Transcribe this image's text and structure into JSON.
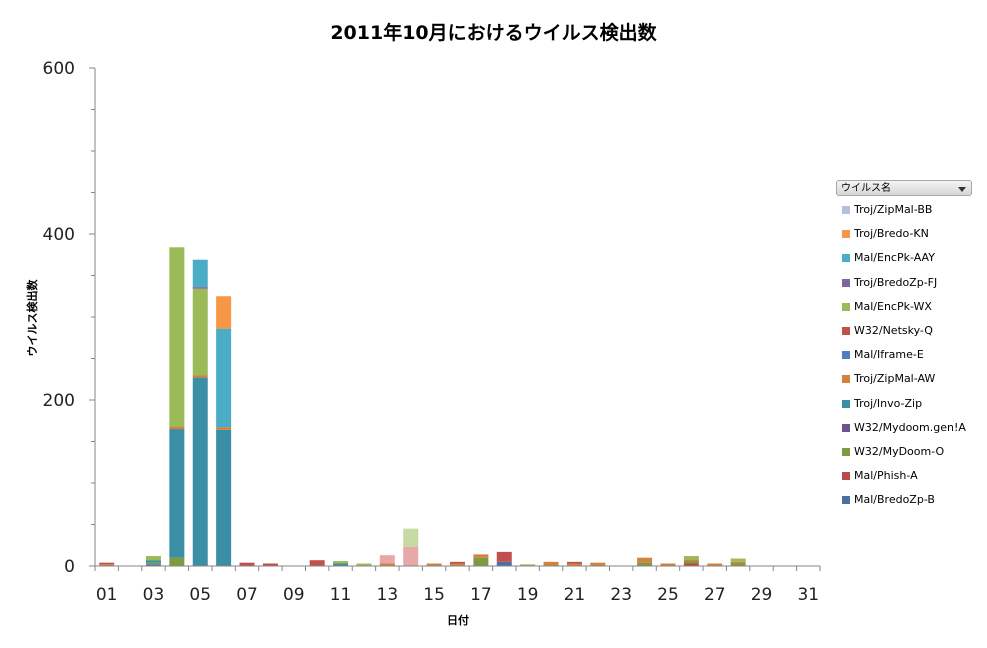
{
  "chart_data": {
    "type": "bar",
    "stacked": true,
    "title": "2011年10月におけるウイルス検出数",
    "xlabel": "日付",
    "ylabel": "ウイルス検出数",
    "ylim": [
      0,
      600
    ],
    "yticks": [
      0,
      200,
      400,
      600
    ],
    "xtick_labels": [
      "01",
      "03",
      "05",
      "07",
      "09",
      "11",
      "13",
      "15",
      "17",
      "19",
      "21",
      "23",
      "25",
      "27",
      "29",
      "31"
    ],
    "categories": [
      "01",
      "02",
      "03",
      "04",
      "05",
      "06",
      "07",
      "08",
      "09",
      "10",
      "11",
      "12",
      "13",
      "14",
      "15",
      "16",
      "17",
      "18",
      "19",
      "20",
      "21",
      "22",
      "23",
      "24",
      "25",
      "26",
      "27",
      "28",
      "29",
      "30",
      "31"
    ],
    "legend_title": "ウイルス名",
    "legend_position": "right",
    "series": [
      {
        "name": "Mal/BredoZp-B",
        "color": "#4a6fa5",
        "values": [
          0,
          0,
          2,
          0,
          0,
          0,
          0,
          0,
          0,
          0,
          0,
          0,
          0,
          0,
          0,
          0,
          0,
          5,
          0,
          0,
          0,
          0,
          0,
          0,
          0,
          0,
          0,
          0,
          0,
          0,
          0
        ]
      },
      {
        "name": "Mal/Phish-A",
        "color": "#b84a4a",
        "values": [
          0,
          0,
          0,
          0,
          0,
          0,
          0,
          0,
          0,
          0,
          0,
          0,
          0,
          0,
          0,
          0,
          0,
          0,
          0,
          0,
          0,
          0,
          0,
          0,
          0,
          3,
          0,
          0,
          0,
          0,
          0
        ]
      },
      {
        "name": "W32/MyDoom-O",
        "color": "#7f9a42",
        "values": [
          0,
          0,
          2,
          10,
          0,
          0,
          0,
          0,
          0,
          0,
          0,
          0,
          0,
          0,
          0,
          0,
          10,
          0,
          0,
          0,
          0,
          0,
          0,
          4,
          0,
          3,
          0,
          3,
          0,
          0,
          0
        ]
      },
      {
        "name": "W32/Mydoom.gen!A",
        "color": "#6a5590",
        "values": [
          0,
          0,
          0,
          0,
          0,
          0,
          0,
          0,
          0,
          0,
          0,
          0,
          0,
          0,
          0,
          0,
          0,
          0,
          0,
          0,
          0,
          0,
          0,
          0,
          0,
          0,
          0,
          0,
          0,
          0,
          0
        ]
      },
      {
        "name": "Troj/Invo-Zip",
        "color": "#3a8fa5",
        "values": [
          0,
          0,
          3,
          155,
          227,
          164,
          0,
          0,
          0,
          0,
          3,
          0,
          0,
          0,
          0,
          0,
          0,
          0,
          0,
          0,
          0,
          0,
          0,
          0,
          0,
          0,
          0,
          0,
          0,
          0,
          0
        ]
      },
      {
        "name": "Troj/ZipMal-AW",
        "color": "#d1823c",
        "values": [
          2,
          0,
          0,
          3,
          3,
          3,
          0,
          0,
          0,
          0,
          0,
          0,
          3,
          0,
          3,
          3,
          4,
          0,
          0,
          5,
          3,
          4,
          0,
          6,
          3,
          2,
          3,
          2,
          0,
          0,
          0
        ]
      },
      {
        "name": "Mal/Iframe-E",
        "color": "#4a7ec0",
        "values": [
          0,
          0,
          0,
          0,
          0,
          0,
          0,
          0,
          0,
          0,
          0,
          0,
          0,
          0,
          0,
          0,
          0,
          0,
          0,
          0,
          0,
          0,
          0,
          0,
          0,
          0,
          0,
          0,
          0,
          0,
          0
        ]
      },
      {
        "name": "W32/Netsky-Q",
        "color": "#c0504d",
        "values": [
          2,
          0,
          0,
          0,
          0,
          0,
          4,
          3,
          0,
          7,
          0,
          0,
          0,
          0,
          0,
          2,
          0,
          12,
          0,
          0,
          2,
          0,
          0,
          0,
          0,
          0,
          0,
          0,
          0,
          0,
          0
        ]
      },
      {
        "name": "Mal/EncPk-WX",
        "color": "#9bbb59",
        "values": [
          0,
          0,
          5,
          216,
          104,
          0,
          0,
          0,
          0,
          0,
          3,
          3,
          0,
          0,
          0,
          0,
          0,
          0,
          2,
          0,
          0,
          0,
          0,
          0,
          0,
          4,
          0,
          4,
          0,
          0,
          0
        ]
      },
      {
        "name": "Troj/BredoZp-FJ",
        "color": "#8064a2",
        "values": [
          0,
          0,
          0,
          0,
          2,
          0,
          0,
          0,
          0,
          0,
          0,
          0,
          0,
          0,
          0,
          0,
          0,
          0,
          0,
          0,
          0,
          0,
          0,
          0,
          0,
          0,
          0,
          0,
          0,
          0,
          0
        ]
      },
      {
        "name": "Mal/EncPk-AAY",
        "color": "#4bacc6",
        "values": [
          0,
          0,
          0,
          0,
          33,
          119,
          0,
          0,
          0,
          0,
          0,
          0,
          0,
          0,
          0,
          0,
          0,
          0,
          0,
          0,
          0,
          0,
          0,
          0,
          0,
          0,
          0,
          0,
          0,
          0,
          0
        ]
      },
      {
        "name": "Troj/Bredo-KN",
        "color": "#f79646",
        "values": [
          0,
          0,
          0,
          0,
          0,
          39,
          0,
          0,
          0,
          0,
          0,
          0,
          0,
          0,
          0,
          0,
          0,
          0,
          0,
          0,
          0,
          0,
          0,
          0,
          0,
          0,
          0,
          0,
          0,
          0,
          0
        ]
      },
      {
        "name": "Troj/ZipMal-BB",
        "color": "#b3c0dc",
        "values": [
          0,
          0,
          0,
          0,
          0,
          0,
          0,
          0,
          0,
          0,
          0,
          0,
          0,
          0,
          0,
          0,
          0,
          0,
          0,
          0,
          0,
          0,
          0,
          0,
          0,
          0,
          0,
          0,
          0,
          0,
          0
        ]
      },
      {
        "name": "",
        "color": "#e6a8a8",
        "values": [
          0,
          0,
          0,
          0,
          0,
          0,
          0,
          0,
          0,
          0,
          0,
          0,
          10,
          23,
          0,
          0,
          0,
          0,
          0,
          0,
          0,
          0,
          0,
          0,
          0,
          0,
          0,
          0,
          0,
          0,
          0
        ]
      },
      {
        "name": "",
        "color": "#c7d9a4",
        "values": [
          0,
          0,
          0,
          0,
          0,
          0,
          0,
          0,
          0,
          0,
          0,
          0,
          0,
          22,
          0,
          0,
          0,
          0,
          0,
          0,
          0,
          0,
          0,
          0,
          0,
          0,
          0,
          0,
          0,
          0,
          0
        ]
      }
    ]
  }
}
